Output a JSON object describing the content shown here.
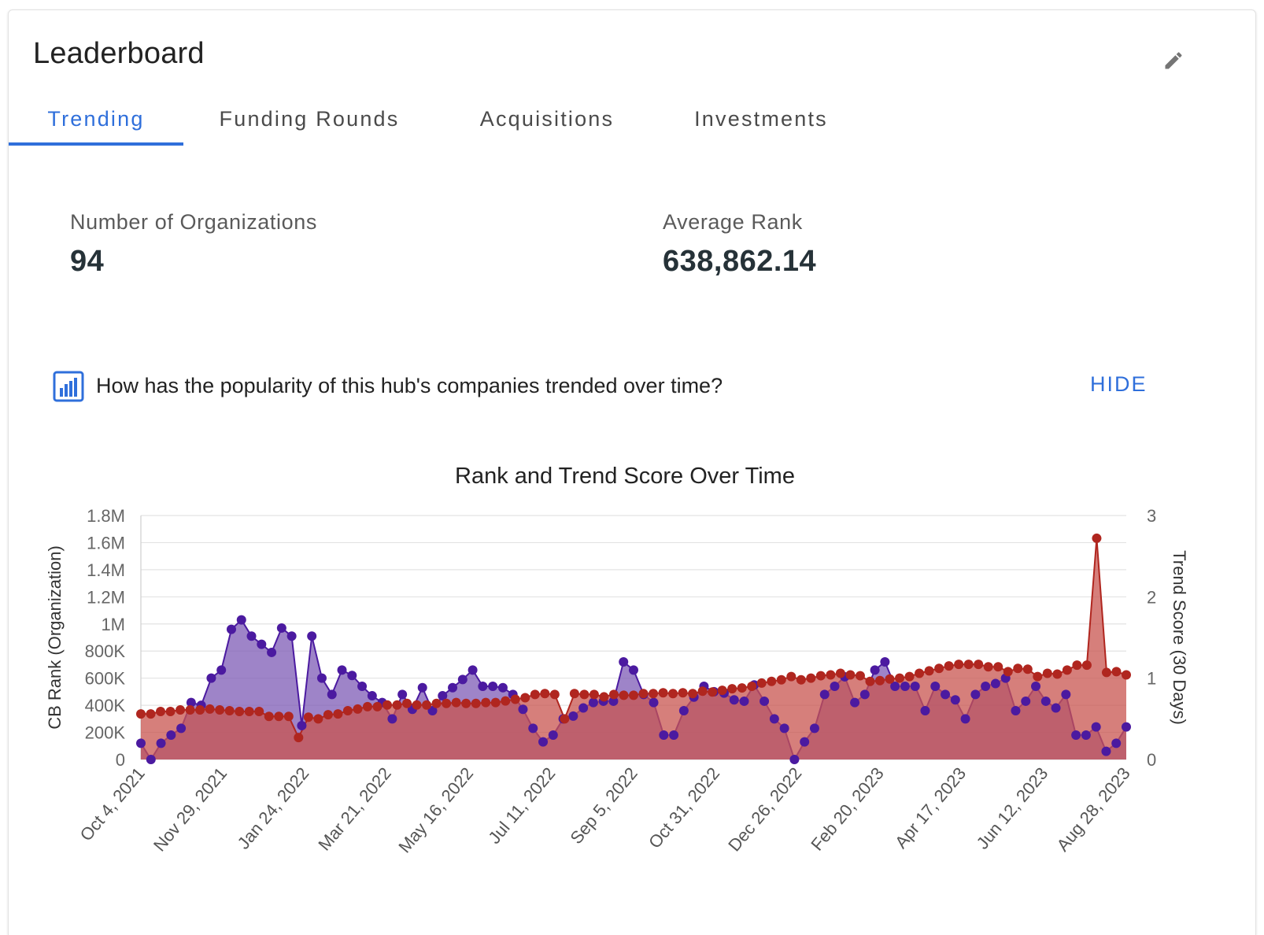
{
  "header": {
    "title": "Leaderboard"
  },
  "tabs": [
    {
      "label": "Trending"
    },
    {
      "label": "Funding Rounds"
    },
    {
      "label": "Acquisitions"
    },
    {
      "label": "Investments"
    }
  ],
  "stats": {
    "org_count_label": "Number of Organizations",
    "org_count_value": "94",
    "avg_rank_label": "Average Rank",
    "avg_rank_value": "638,862.14"
  },
  "question": {
    "text": "How has the popularity of this hub's companies trended over time?",
    "hide_label": "HIDE"
  },
  "colors": {
    "accent": "#2f6fdb",
    "rank_series": "#4b1aa0",
    "rank_fill": "#7d5bb5",
    "trend_series": "#b0261f",
    "trend_fill": "#c8544f"
  },
  "chart_data": {
    "type": "area",
    "title": "Rank and Trend Score Over Time",
    "ylabel": "CB Rank (Organization)",
    "y2label": "Trend Score (30 Days)",
    "ylim": [
      0,
      1800000
    ],
    "y2lim": [
      0,
      3
    ],
    "y_ticks": [
      "0",
      "200K",
      "400K",
      "600K",
      "800K",
      "1M",
      "1.2M",
      "1.4M",
      "1.6M",
      "1.8M"
    ],
    "y2_ticks": [
      "0",
      "1",
      "2",
      "3"
    ],
    "x_ticks": [
      "Oct 4, 2021",
      "Nov 29, 2021",
      "Jan 24, 2022",
      "Mar 21, 2022",
      "May 16, 2022",
      "Jul 11, 2022",
      "Sep 5, 2022",
      "Oct 31, 2022",
      "Dec 26, 2022",
      "Feb 20, 2023",
      "Apr 17, 2023",
      "Jun 12, 2023",
      "Aug 28, 2023"
    ],
    "x_start": "Oct 4, 2021",
    "x_end": "Aug 28, 2023",
    "grid": true,
    "series": [
      {
        "name": "CB Rank (Organization)",
        "axis": "left",
        "values": [
          120000,
          0,
          120000,
          180000,
          230000,
          420000,
          400000,
          600000,
          660000,
          960000,
          1030000,
          910000,
          850000,
          790000,
          970000,
          910000,
          250000,
          910000,
          600000,
          480000,
          660000,
          620000,
          540000,
          470000,
          420000,
          300000,
          480000,
          370000,
          530000,
          360000,
          470000,
          530000,
          590000,
          660000,
          540000,
          540000,
          530000,
          480000,
          370000,
          230000,
          130000,
          180000,
          300000,
          320000,
          380000,
          420000,
          430000,
          430000,
          720000,
          660000,
          480000,
          420000,
          180000,
          180000,
          360000,
          460000,
          540000,
          500000,
          490000,
          440000,
          430000,
          550000,
          430000,
          300000,
          230000,
          0,
          130000,
          230000,
          480000,
          540000,
          610000,
          420000,
          480000,
          660000,
          720000,
          540000,
          540000,
          540000,
          360000,
          540000,
          480000,
          440000,
          300000,
          480000,
          540000,
          560000,
          600000,
          360000,
          430000,
          540000,
          430000,
          380000,
          480000,
          180000,
          180000,
          240000,
          60000,
          120000,
          240000
        ]
      },
      {
        "name": "Trend Score (30 Days)",
        "axis": "right",
        "values": [
          0.56,
          0.56,
          0.59,
          0.59,
          0.61,
          0.61,
          0.61,
          0.62,
          0.61,
          0.6,
          0.59,
          0.59,
          0.59,
          0.53,
          0.53,
          0.53,
          0.27,
          0.52,
          0.5,
          0.55,
          0.56,
          0.6,
          0.62,
          0.65,
          0.65,
          0.67,
          0.67,
          0.69,
          0.67,
          0.67,
          0.69,
          0.69,
          0.7,
          0.69,
          0.69,
          0.7,
          0.7,
          0.72,
          0.74,
          0.76,
          0.8,
          0.81,
          0.8,
          0.5,
          0.81,
          0.8,
          0.8,
          0.77,
          0.8,
          0.79,
          0.79,
          0.81,
          0.81,
          0.82,
          0.81,
          0.82,
          0.81,
          0.84,
          0.83,
          0.85,
          0.87,
          0.88,
          0.9,
          0.94,
          0.96,
          0.98,
          1.02,
          0.98,
          1.0,
          1.03,
          1.04,
          1.06,
          1.04,
          1.03,
          0.96,
          0.97,
          0.99,
          1.0,
          1.02,
          1.06,
          1.09,
          1.12,
          1.15,
          1.17,
          1.17,
          1.17,
          1.14,
          1.14,
          1.08,
          1.12,
          1.11,
          1.02,
          1.06,
          1.05,
          1.1,
          1.16,
          1.16,
          2.72,
          1.07,
          1.08,
          1.04
        ]
      }
    ]
  }
}
